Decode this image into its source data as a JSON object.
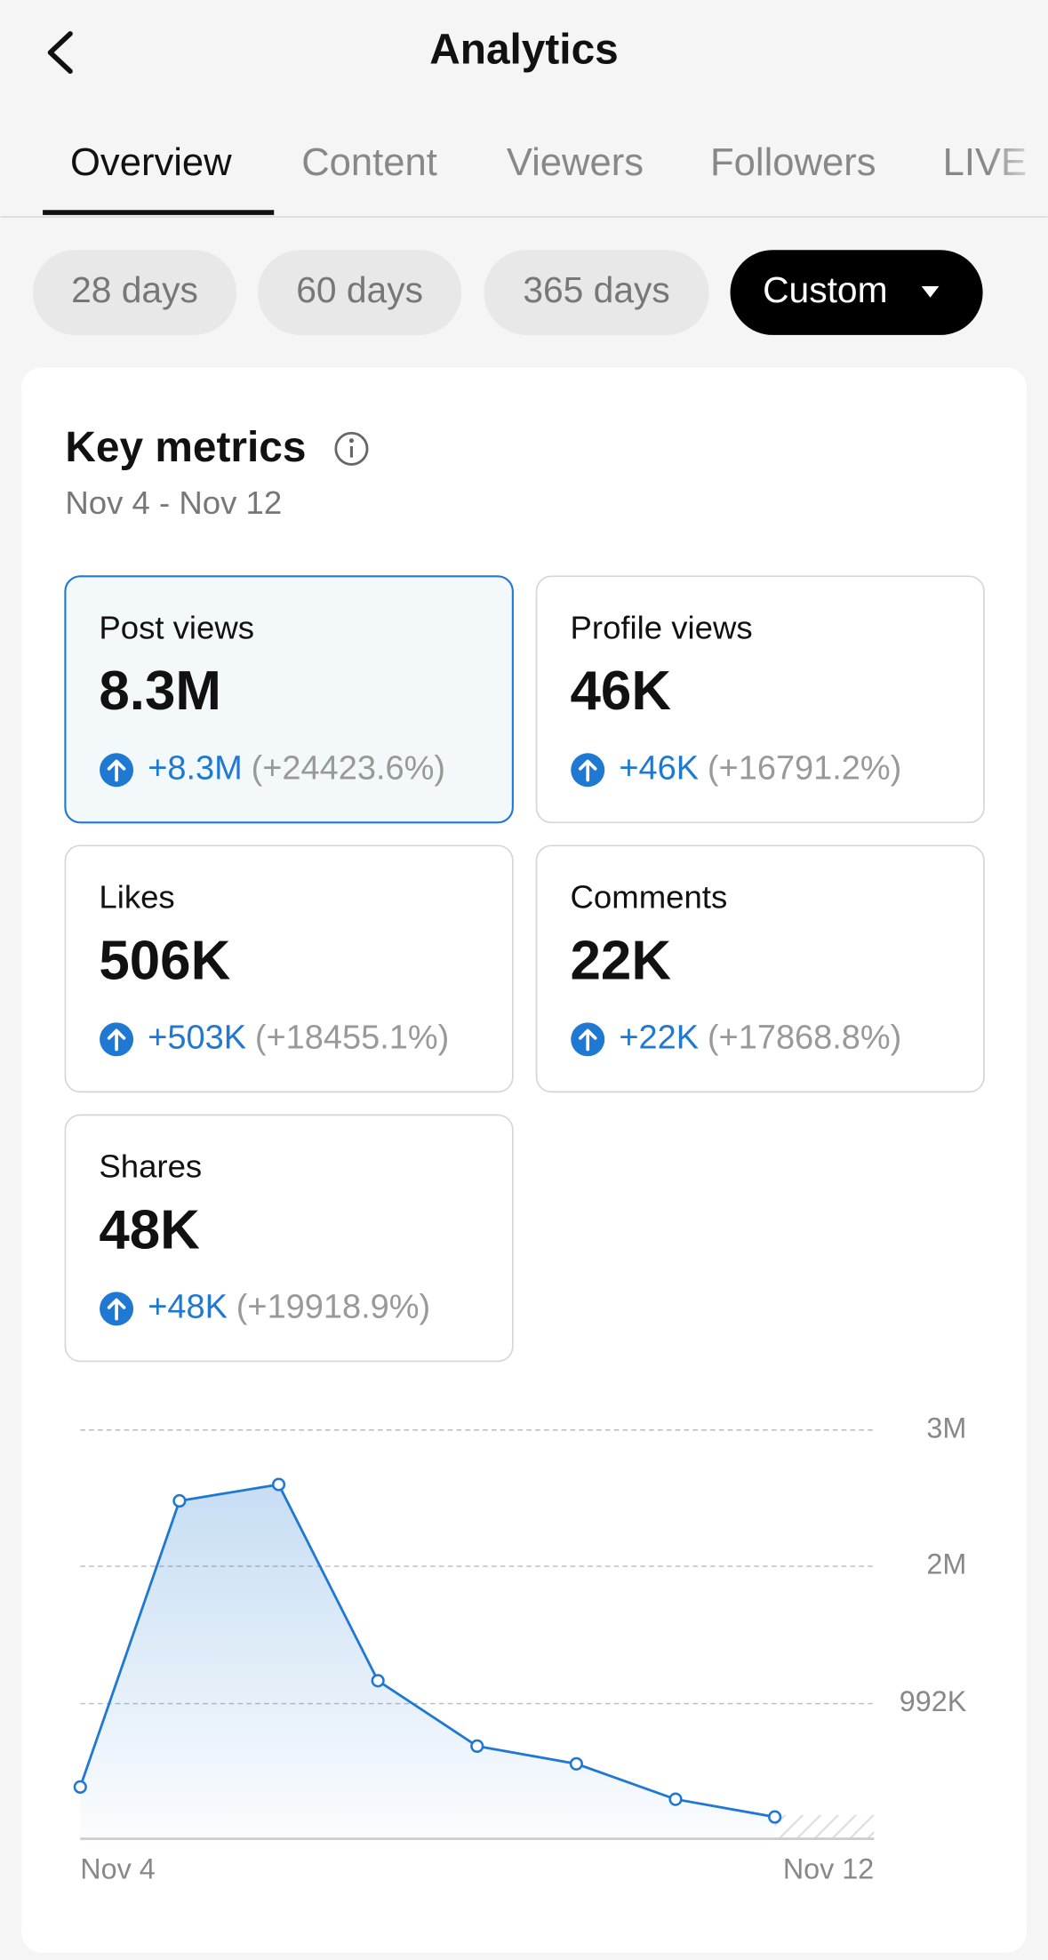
{
  "header": {
    "title": "Analytics"
  },
  "tabs": [
    "Overview",
    "Content",
    "Viewers",
    "Followers",
    "LIVE"
  ],
  "date_ranges": [
    "28 days",
    "60 days",
    "365 days",
    "Custom"
  ],
  "key_metrics": {
    "title": "Key metrics",
    "date_range": "Nov 4 - Nov 12",
    "metrics": [
      {
        "label": "Post views",
        "value": "8.3M",
        "change": "+8.3M",
        "change_pct": "(+24423.6%)"
      },
      {
        "label": "Profile views",
        "value": "46K",
        "change": "+46K",
        "change_pct": "(+16791.2%)"
      },
      {
        "label": "Likes",
        "value": "506K",
        "change": "+503K",
        "change_pct": "(+18455.1%)"
      },
      {
        "label": "Comments",
        "value": "22K",
        "change": "+22K",
        "change_pct": "(+17868.8%)"
      },
      {
        "label": "Shares",
        "value": "48K",
        "change": "+48K",
        "change_pct": "(+19918.9%)"
      }
    ]
  },
  "chart_data": {
    "type": "line",
    "categories": [
      "Nov 4",
      null,
      null,
      null,
      null,
      null,
      null,
      null,
      "Nov 12"
    ],
    "values": [
      380000,
      2480000,
      2600000,
      1160000,
      680000,
      550000,
      290000,
      160000,
      null
    ],
    "color": "#1f78d1",
    "ylim": [
      0,
      3000000
    ],
    "yticks": [
      {
        "value": 992000,
        "label": "992K"
      },
      {
        "value": 2000000,
        "label": "2M"
      },
      {
        "value": 3000000,
        "label": "3M"
      }
    ],
    "grid": true
  }
}
